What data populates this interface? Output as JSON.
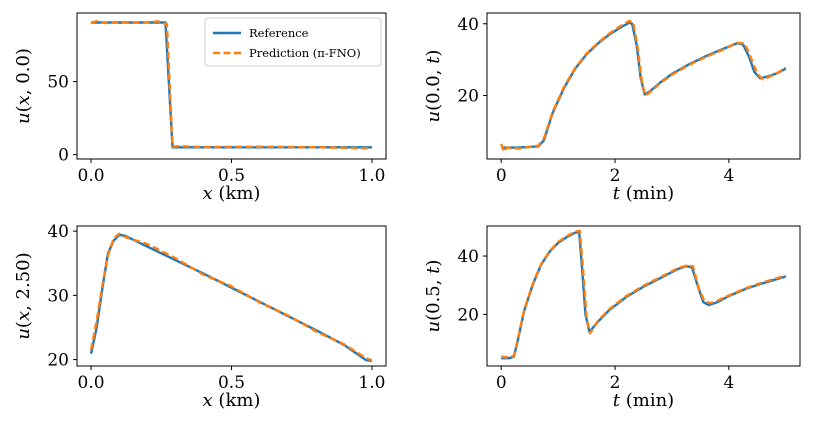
{
  "figure": {
    "title": ""
  },
  "colors": {
    "reference": "#1f77b4",
    "prediction": "#ff7f0e",
    "axes": "#000000"
  },
  "chart_data": [
    {
      "type": "line",
      "xlabel": "x (km)",
      "xlabel_var": "x",
      "xlabel_unit": " (km)",
      "ylabel": "u(x, 0.0)",
      "ylabel_fn": "u(",
      "ylabel_var": "x",
      "ylabel_rest": ", 0.0)",
      "xlim": [
        -0.05,
        1.05
      ],
      "ylim": [
        -3,
        97
      ],
      "xticks": [
        0.0,
        0.5,
        1.0
      ],
      "xtick_labels": [
        "0.0",
        "0.5",
        "1.0"
      ],
      "yticks": [
        0,
        50
      ],
      "ytick_labels": [
        "0",
        "50"
      ],
      "legend": {
        "location": "upper right",
        "entries": [
          "Reference",
          "Prediction (π-FNO)"
        ]
      },
      "series": [
        {
          "name": "Reference",
          "style": "solid",
          "x": [
            0.0,
            0.1,
            0.2,
            0.265,
            0.29,
            0.3,
            0.5,
            0.7,
            1.0
          ],
          "y": [
            90.5,
            90.5,
            90.5,
            90.5,
            5,
            5,
            5,
            5,
            5
          ]
        },
        {
          "name": "Prediction (π-FNO)",
          "style": "dashed",
          "x": [
            0.0,
            0.02,
            0.05,
            0.1,
            0.15,
            0.2,
            0.24,
            0.26,
            0.27,
            0.29,
            0.31,
            0.4,
            0.6,
            0.8,
            0.98,
            1.0
          ],
          "y": [
            90,
            91.5,
            90.2,
            90.8,
            90.3,
            90.6,
            91.3,
            89.8,
            89.5,
            5.5,
            5.8,
            5.2,
            5.4,
            5.1,
            4.3,
            5.5
          ]
        }
      ]
    },
    {
      "type": "line",
      "xlabel": "t (min)",
      "xlabel_var": "t",
      "xlabel_unit": " (min)",
      "ylabel": "u(0.0, t)",
      "ylabel_fn": "u(0.0, ",
      "ylabel_var": "t",
      "ylabel_rest": ")",
      "xlim": [
        -0.25,
        5.25
      ],
      "ylim": [
        2.3,
        43
      ],
      "xticks": [
        0,
        2,
        4
      ],
      "xtick_labels": [
        "0",
        "2",
        "4"
      ],
      "yticks": [
        20,
        40
      ],
      "ytick_labels": [
        "20",
        "40"
      ],
      "series": [
        {
          "name": "Reference",
          "style": "solid",
          "x": [
            0,
            0.3,
            0.65,
            0.75,
            0.9,
            1.1,
            1.3,
            1.5,
            1.7,
            1.9,
            2.1,
            2.25,
            2.3,
            2.38,
            2.45,
            2.52,
            2.6,
            2.8,
            3.0,
            3.3,
            3.6,
            3.9,
            4.15,
            4.25,
            4.35,
            4.45,
            4.55,
            4.7,
            4.85,
            5.0
          ],
          "y": [
            5.5,
            5.5,
            5.8,
            7.5,
            15,
            22,
            27.5,
            31.5,
            34.5,
            37,
            39,
            40.3,
            40,
            34,
            25,
            20.3,
            21,
            23.7,
            26,
            28.7,
            31,
            33,
            34.6,
            34.2,
            31,
            26.5,
            24.8,
            25.4,
            26.2,
            27.5
          ]
        },
        {
          "name": "Prediction (π-FNO)",
          "style": "dashed",
          "x": [
            0,
            0.05,
            0.1,
            0.3,
            0.65,
            0.75,
            0.9,
            1.1,
            1.3,
            1.5,
            1.7,
            1.9,
            2.1,
            2.25,
            2.32,
            2.4,
            2.47,
            2.53,
            2.6,
            2.8,
            3.0,
            3.3,
            3.6,
            3.9,
            4.15,
            4.28,
            4.4,
            4.5,
            4.6,
            4.75,
            4.9,
            5.0
          ],
          "y": [
            6.5,
            4.3,
            5.5,
            5.2,
            6.0,
            8.0,
            15.3,
            22.3,
            27.7,
            31.7,
            34.7,
            37.3,
            39.4,
            40.8,
            40.3,
            33,
            24,
            20,
            20.7,
            23.5,
            25.8,
            28.5,
            30.8,
            32.8,
            34.7,
            34.5,
            30,
            26,
            24.5,
            25.5,
            26.7,
            27.8
          ]
        }
      ]
    },
    {
      "type": "line",
      "xlabel": "x (km)",
      "xlabel_var": "x",
      "xlabel_unit": " (km)",
      "ylabel": "u(x, 2.50)",
      "ylabel_fn": "u(",
      "ylabel_var": "x",
      "ylabel_rest": ", 2.50)",
      "xlim": [
        -0.05,
        1.05
      ],
      "ylim": [
        19.0,
        40.8
      ],
      "xticks": [
        0.0,
        0.5,
        1.0
      ],
      "xtick_labels": [
        "0.0",
        "0.5",
        "1.0"
      ],
      "yticks": [
        20,
        30,
        40
      ],
      "ytick_labels": [
        "20",
        "30",
        "40"
      ],
      "series": [
        {
          "name": "Reference",
          "style": "solid",
          "x": [
            0.0,
            0.02,
            0.04,
            0.06,
            0.08,
            0.1,
            0.12,
            0.2,
            0.3,
            0.4,
            0.5,
            0.6,
            0.7,
            0.8,
            0.9,
            0.98,
            1.0
          ],
          "y": [
            20.9,
            25,
            31,
            36.5,
            38.5,
            39.4,
            39.3,
            37.6,
            35.5,
            33.4,
            31.2,
            29,
            26.8,
            24.6,
            22.3,
            19.9,
            19.8
          ]
        },
        {
          "name": "Prediction (π-FNO)",
          "style": "dashed",
          "x": [
            0.0,
            0.02,
            0.04,
            0.06,
            0.08,
            0.1,
            0.12,
            0.2,
            0.3,
            0.4,
            0.5,
            0.6,
            0.7,
            0.8,
            0.9,
            0.98,
            1.0
          ],
          "y": [
            21.5,
            26,
            31.5,
            36.2,
            38.8,
            39.6,
            39.1,
            38.0,
            35.8,
            33.2,
            31.4,
            28.9,
            26.9,
            24.4,
            22.4,
            20.2,
            19.9
          ]
        }
      ]
    },
    {
      "type": "line",
      "xlabel": "t (min)",
      "xlabel_var": "t",
      "xlabel_unit": " (min)",
      "ylabel": "u(0.5, t)",
      "ylabel_fn": "u(0.5, ",
      "ylabel_var": "t",
      "ylabel_rest": ")",
      "xlim": [
        -0.25,
        5.25
      ],
      "ylim": [
        2.3,
        50.3
      ],
      "xticks": [
        0,
        2,
        4
      ],
      "xtick_labels": [
        "0",
        "2",
        "4"
      ],
      "yticks": [
        20,
        40
      ],
      "ytick_labels": [
        "20",
        "40"
      ],
      "series": [
        {
          "name": "Reference",
          "style": "solid",
          "x": [
            0,
            0.15,
            0.22,
            0.28,
            0.4,
            0.55,
            0.7,
            0.85,
            1.0,
            1.15,
            1.3,
            1.37,
            1.42,
            1.48,
            1.55,
            1.7,
            1.9,
            2.2,
            2.5,
            2.8,
            3.1,
            3.25,
            3.35,
            3.45,
            3.55,
            3.65,
            3.8,
            4.0,
            4.3,
            4.6,
            5.0
          ],
          "y": [
            5,
            5,
            5.5,
            10,
            21,
            30,
            37,
            41.5,
            44.5,
            46.5,
            48,
            48.2,
            36,
            20,
            14,
            17.5,
            21.5,
            26,
            29.5,
            32.5,
            35.5,
            36.5,
            36.2,
            30,
            24.2,
            23.2,
            24.2,
            26.3,
            28.8,
            30.7,
            33
          ]
        },
        {
          "name": "Prediction (π-FNO)",
          "style": "dashed",
          "x": [
            0,
            0.15,
            0.22,
            0.28,
            0.4,
            0.55,
            0.7,
            0.85,
            1.0,
            1.15,
            1.3,
            1.38,
            1.44,
            1.5,
            1.56,
            1.7,
            1.9,
            2.2,
            2.5,
            2.8,
            3.1,
            3.27,
            3.37,
            3.47,
            3.57,
            3.67,
            3.8,
            4.0,
            4.3,
            4.6,
            5.0
          ],
          "y": [
            5.5,
            5.2,
            5.8,
            10.5,
            21.3,
            30.3,
            37.2,
            41.7,
            44.8,
            46.8,
            48.4,
            48.6,
            35,
            19,
            13.5,
            17.8,
            21.8,
            26.3,
            29.8,
            32.8,
            35.8,
            36.8,
            36.5,
            29,
            24.6,
            23.8,
            24.7,
            26.5,
            29.0,
            31.0,
            33.3
          ]
        }
      ]
    }
  ]
}
